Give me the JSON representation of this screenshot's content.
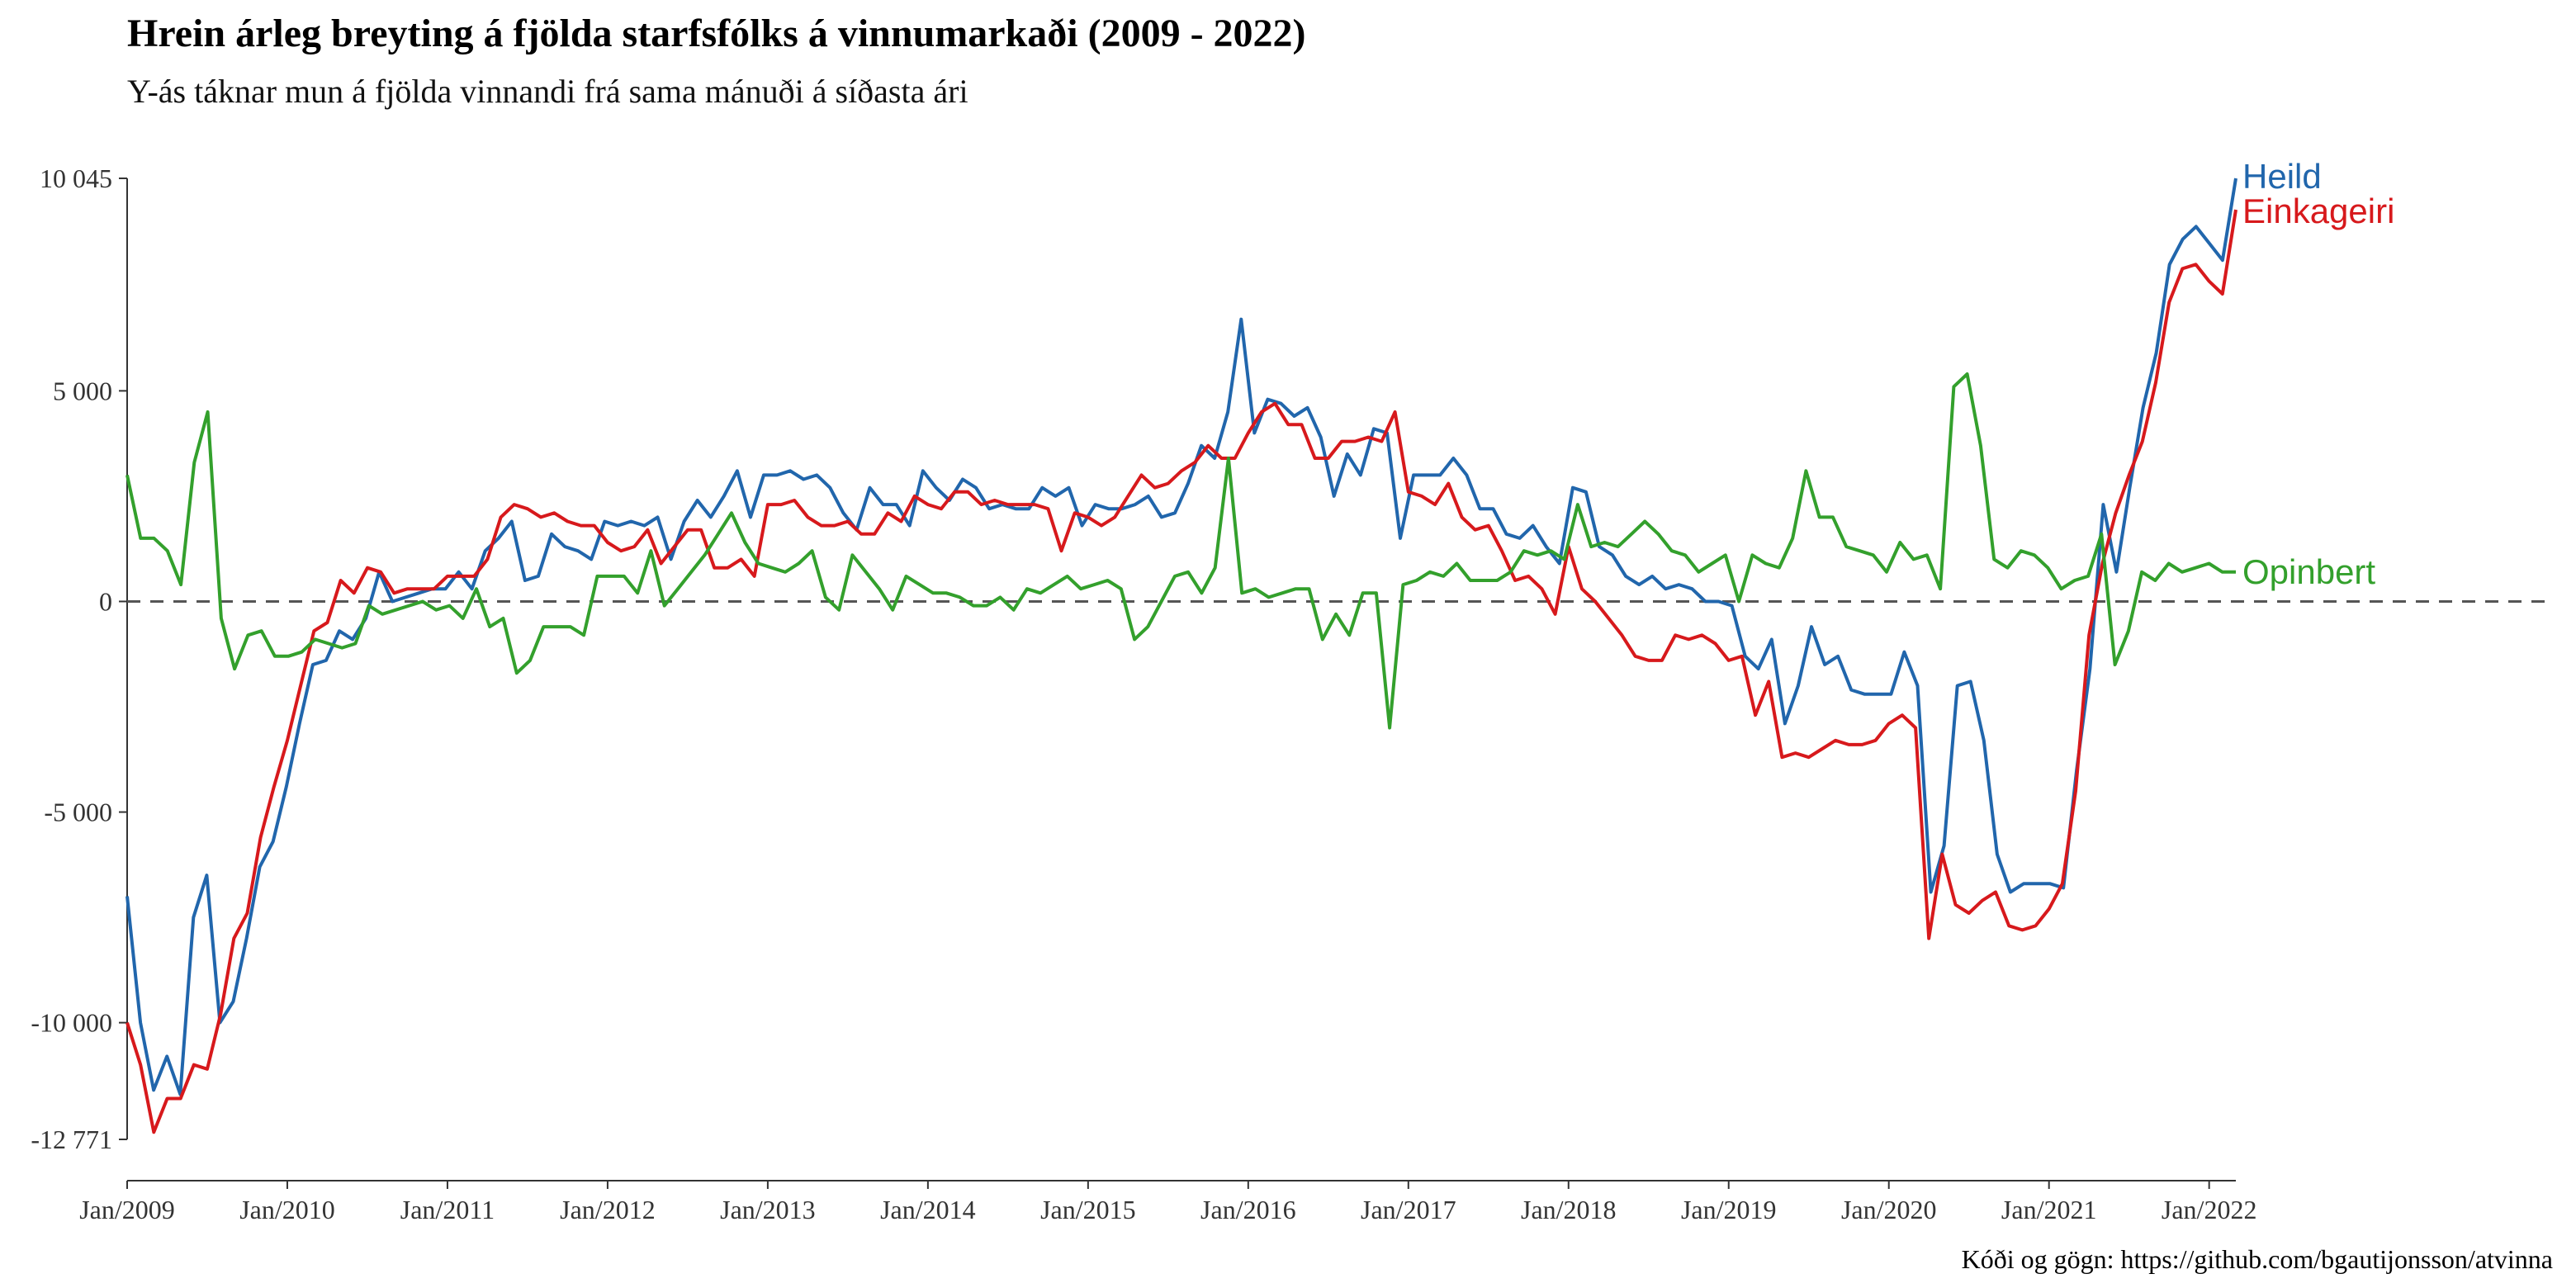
{
  "title": "Hrein árleg breyting á fjölda starfsfólks á vinnumarkaði (2009 - 2022)",
  "subtitle": "Y-ás táknar mun á fjölda vinnandi frá sama mánuði á síðasta ári",
  "caption": "Kóði og gögn: https://github.com/bgautijonsson/atvinna",
  "chart_data": {
    "type": "line",
    "x_start": "2009-01",
    "x_end": "2022-03",
    "xlim": [
      "2009-01",
      "2022-03"
    ],
    "ylim": [
      -12771,
      10045
    ],
    "y_ticks": [
      10045,
      5000,
      0,
      -5000,
      -10000,
      -12771
    ],
    "y_tick_labels": [
      "10 045",
      "5 000",
      "0",
      "-5 000",
      "-10 000",
      "-12 771"
    ],
    "x_ticks": [
      "2009-01",
      "2010-01",
      "2011-01",
      "2012-01",
      "2013-01",
      "2014-01",
      "2015-01",
      "2016-01",
      "2017-01",
      "2018-01",
      "2019-01",
      "2020-01",
      "2021-01",
      "2022-01"
    ],
    "x_tick_labels": [
      "Jan/2009",
      "Jan/2010",
      "Jan/2011",
      "Jan/2012",
      "Jan/2013",
      "Jan/2014",
      "Jan/2015",
      "Jan/2016",
      "Jan/2017",
      "Jan/2018",
      "Jan/2019",
      "Jan/2020",
      "Jan/2021",
      "Jan/2022"
    ],
    "zero_line": true,
    "grid": false,
    "legend": "direct labels at line ends",
    "series": [
      {
        "name": "Heild",
        "color": "#2166ac",
        "values": [
          -7000,
          -10000,
          -11600,
          -10800,
          -11700,
          -7500,
          -6500,
          -10000,
          -9500,
          -8000,
          -6300,
          -5700,
          -4400,
          -2900,
          -1500,
          -1400,
          -700,
          -900,
          -400,
          700,
          0,
          100,
          200,
          300,
          300,
          700,
          300,
          1200,
          1500,
          1900,
          500,
          600,
          1600,
          1300,
          1200,
          1000,
          1900,
          1800,
          1900,
          1800,
          2000,
          1000,
          1900,
          2400,
          2000,
          2500,
          3100,
          2000,
          3000,
          3000,
          3100,
          2900,
          3000,
          2700,
          2100,
          1700,
          2700,
          2300,
          2300,
          1800,
          3100,
          2700,
          2400,
          2900,
          2700,
          2200,
          2300,
          2200,
          2200,
          2700,
          2500,
          2700,
          1800,
          2300,
          2200,
          2200,
          2300,
          2500,
          2000,
          2100,
          2800,
          3700,
          3400,
          4500,
          6700,
          4000,
          4800,
          4700,
          4400,
          4600,
          3900,
          2500,
          3500,
          3000,
          4100,
          4000,
          1500,
          3000,
          3000,
          3000,
          3400,
          3000,
          2200,
          2200,
          1600,
          1500,
          1800,
          1300,
          900,
          2700,
          2600,
          1300,
          1100,
          600,
          400,
          600,
          300,
          400,
          300,
          0,
          0,
          -100,
          -1300,
          -1600,
          -900,
          -2900,
          -2000,
          -600,
          -1500,
          -1300,
          -2100,
          -2200,
          -2200,
          -2200,
          -1200,
          -2000,
          -6900,
          -5800,
          -2000,
          -1900,
          -3300,
          -6000,
          -6900,
          -6700,
          -6700,
          -6700,
          -6800,
          -4000,
          -1600,
          2300,
          700,
          2700,
          4600,
          5900,
          8000,
          8600,
          8900,
          8500,
          8100,
          10045
        ]
      },
      {
        "name": "Einkageiri",
        "color": "#d7191c",
        "values": [
          -10000,
          -11000,
          -12600,
          -11800,
          -11800,
          -11000,
          -11100,
          -9800,
          -8000,
          -7400,
          -5600,
          -4400,
          -3300,
          -2000,
          -700,
          -500,
          500,
          200,
          800,
          700,
          200,
          300,
          300,
          300,
          600,
          600,
          600,
          1000,
          2000,
          2300,
          2200,
          2000,
          2100,
          1900,
          1800,
          1800,
          1400,
          1200,
          1300,
          1700,
          900,
          1300,
          1700,
          1700,
          800,
          800,
          1000,
          600,
          2300,
          2300,
          2400,
          2000,
          1800,
          1800,
          1900,
          1600,
          1600,
          2100,
          1900,
          2500,
          2300,
          2200,
          2600,
          2600,
          2300,
          2400,
          2300,
          2300,
          2300,
          2200,
          1200,
          2100,
          2000,
          1800,
          2000,
          2500,
          3000,
          2700,
          2800,
          3100,
          3300,
          3700,
          3400,
          3400,
          4000,
          4500,
          4700,
          4200,
          4200,
          3400,
          3400,
          3800,
          3800,
          3900,
          3800,
          4500,
          2600,
          2500,
          2300,
          2800,
          2000,
          1700,
          1800,
          1200,
          500,
          600,
          300,
          -300,
          1300,
          300,
          0,
          -400,
          -800,
          -1300,
          -1400,
          -1400,
          -800,
          -900,
          -800,
          -1000,
          -1400,
          -1300,
          -2700,
          -1900,
          -3700,
          -3600,
          -3700,
          -3500,
          -3300,
          -3400,
          -3400,
          -3300,
          -2900,
          -2700,
          -3000,
          -8000,
          -6000,
          -7200,
          -7400,
          -7100,
          -6900,
          -7700,
          -7800,
          -7700,
          -7300,
          -6700,
          -4500,
          -800,
          900,
          2100,
          3000,
          3800,
          5200,
          7100,
          7900,
          8000,
          7600,
          7300,
          9300
        ]
      },
      {
        "name": "Opinbert",
        "color": "#33a02c",
        "values": [
          3000,
          1500,
          1500,
          1200,
          400,
          3300,
          4500,
          -400,
          -1600,
          -800,
          -700,
          -1300,
          -1300,
          -1200,
          -900,
          -1000,
          -1100,
          -1000,
          -100,
          -300,
          -200,
          -100,
          0,
          -200,
          -100,
          -400,
          300,
          -600,
          -400,
          -1700,
          -1400,
          -600,
          -600,
          -600,
          -800,
          600,
          600,
          600,
          200,
          1200,
          -100,
          300,
          700,
          1100,
          1600,
          2100,
          1400,
          900,
          800,
          700,
          900,
          1200,
          100,
          -200,
          1100,
          700,
          300,
          -200,
          600,
          400,
          200,
          200,
          100,
          -100,
          -100,
          100,
          -200,
          300,
          200,
          400,
          600,
          300,
          400,
          500,
          300,
          -900,
          -600,
          0,
          600,
          700,
          200,
          800,
          3400,
          200,
          300,
          100,
          200,
          300,
          300,
          -900,
          -300,
          -800,
          200,
          200,
          -3000,
          400,
          500,
          700,
          600,
          900,
          500,
          500,
          500,
          700,
          1200,
          1100,
          1200,
          1000,
          2300,
          1300,
          1400,
          1300,
          1600,
          1900,
          1600,
          1200,
          1100,
          700,
          900,
          1100,
          0,
          1100,
          900,
          800,
          1500,
          3100,
          2000,
          2000,
          1300,
          1200,
          1100,
          700,
          1400,
          1000,
          1100,
          300,
          5100,
          5400,
          3700,
          1000,
          800,
          1200,
          1100,
          800,
          300,
          500,
          600,
          1600,
          -1500,
          -700,
          700,
          500,
          900,
          700,
          800,
          900,
          700,
          700
        ]
      }
    ]
  }
}
